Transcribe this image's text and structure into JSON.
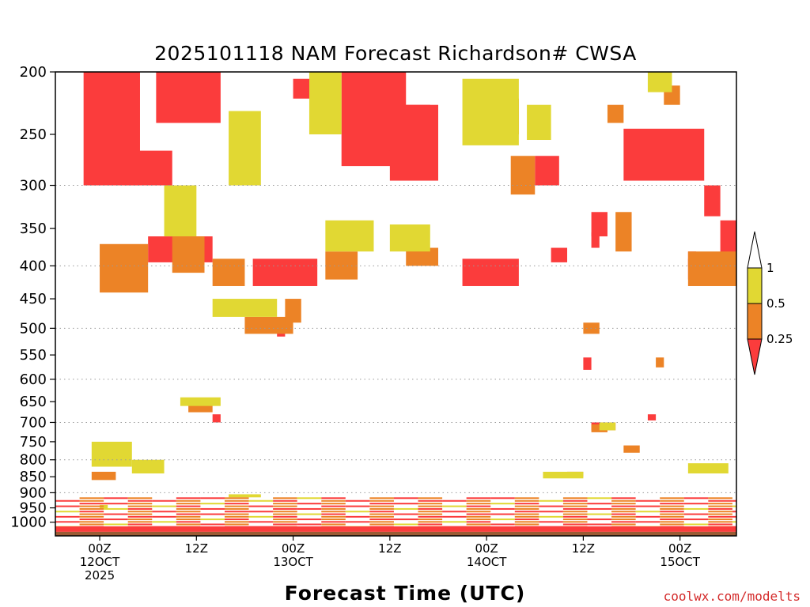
{
  "chart_data": {
    "type": "heatmap",
    "title": "2025101118 NAM Forecast Richardson# CWSA",
    "xlabel": "Forecast Time (UTC)",
    "ylabel": "",
    "y_scale": "log-pressure",
    "ylim": [
      1050,
      200
    ],
    "y_ticks": [
      200,
      250,
      300,
      350,
      400,
      450,
      500,
      550,
      600,
      650,
      700,
      750,
      800,
      850,
      900,
      950,
      1000
    ],
    "y_gridlines": [
      300,
      400,
      500,
      600,
      700,
      800,
      900
    ],
    "x_range_hours": [
      -5.5,
      79
    ],
    "x_ticks": [
      {
        "hour": 0,
        "line1": "00Z",
        "line2": "12OCT",
        "line3": "2025"
      },
      {
        "hour": 12,
        "line1": "12Z",
        "line2": "",
        "line3": ""
      },
      {
        "hour": 24,
        "line1": "00Z",
        "line2": "13OCT",
        "line3": ""
      },
      {
        "hour": 36,
        "line1": "12Z",
        "line2": "",
        "line3": ""
      },
      {
        "hour": 48,
        "line1": "00Z",
        "line2": "14OCT",
        "line3": ""
      },
      {
        "hour": 60,
        "line1": "12Z",
        "line2": "",
        "line3": ""
      },
      {
        "hour": 72,
        "line1": "00Z",
        "line2": "15OCT",
        "line3": ""
      }
    ],
    "legend": {
      "placement": "right",
      "levels": [
        "1",
        "0.5",
        "0.25"
      ],
      "bins": [
        {
          "range": "> 1",
          "color": "#ffffff"
        },
        {
          "range": "0.5 - 1",
          "color": "#e1d833"
        },
        {
          "range": "0.25 - 0.5",
          "color": "#ec8326"
        },
        {
          "range": "< 0.25",
          "color": "#fb3c3c"
        }
      ]
    },
    "colors": {
      "yellow": "#e1d833",
      "orange": "#ec8326",
      "red": "#fb3c3c",
      "ground": "#9a5b34"
    },
    "regions": [
      {
        "c": "red",
        "h": [
          -2,
          5
        ],
        "p": [
          200,
          300
        ]
      },
      {
        "c": "red",
        "h": [
          7,
          15
        ],
        "p": [
          200,
          240
        ]
      },
      {
        "c": "red",
        "h": [
          3,
          9
        ],
        "p": [
          265,
          300
        ]
      },
      {
        "c": "red",
        "h": [
          6,
          14
        ],
        "p": [
          360,
          395
        ]
      },
      {
        "c": "red",
        "h": [
          24,
          27
        ],
        "p": [
          205,
          220
        ]
      },
      {
        "c": "red",
        "h": [
          30,
          38
        ],
        "p": [
          200,
          280
        ]
      },
      {
        "c": "red",
        "h": [
          31,
          41
        ],
        "p": [
          225,
          265
        ]
      },
      {
        "c": "red",
        "h": [
          36,
          42
        ],
        "p": [
          225,
          295
        ]
      },
      {
        "c": "red",
        "h": [
          54,
          57
        ],
        "p": [
          270,
          300
        ]
      },
      {
        "c": "red",
        "h": [
          65,
          75
        ],
        "p": [
          245,
          295
        ]
      },
      {
        "c": "red",
        "h": [
          19,
          27
        ],
        "p": [
          390,
          430
        ]
      },
      {
        "c": "red",
        "h": [
          45,
          52
        ],
        "p": [
          390,
          430
        ]
      },
      {
        "c": "red",
        "h": [
          56,
          58
        ],
        "p": [
          375,
          395
        ]
      },
      {
        "c": "red",
        "h": [
          61,
          62
        ],
        "p": [
          355,
          375
        ]
      },
      {
        "c": "red",
        "h": [
          73,
          78
        ],
        "p": [
          390,
          420
        ]
      },
      {
        "c": "red",
        "h": [
          73,
          74
        ],
        "p": [
          380,
          400
        ]
      },
      {
        "c": "red",
        "h": [
          75,
          77
        ],
        "p": [
          300,
          335
        ]
      },
      {
        "c": "red",
        "h": [
          77,
          79
        ],
        "p": [
          340,
          390
        ]
      },
      {
        "c": "red",
        "h": [
          61,
          63
        ],
        "p": [
          330,
          360
        ]
      },
      {
        "c": "red",
        "h": [
          22,
          23
        ],
        "p": [
          490,
          515
        ]
      },
      {
        "c": "red",
        "h": [
          60,
          61
        ],
        "p": [
          555,
          580
        ]
      },
      {
        "c": "red",
        "h": [
          61,
          64
        ],
        "p": [
          700,
          720
        ]
      },
      {
        "c": "red",
        "h": [
          68,
          69
        ],
        "p": [
          680,
          695
        ]
      },
      {
        "c": "red",
        "h": [
          14,
          15
        ],
        "p": [
          680,
          700
        ]
      },
      {
        "c": "orange",
        "h": [
          0,
          6
        ],
        "p": [
          370,
          440
        ]
      },
      {
        "c": "orange",
        "h": [
          9,
          13
        ],
        "p": [
          360,
          410
        ]
      },
      {
        "c": "orange",
        "h": [
          14,
          18
        ],
        "p": [
          390,
          430
        ]
      },
      {
        "c": "orange",
        "h": [
          18,
          24
        ],
        "p": [
          480,
          510
        ]
      },
      {
        "c": "orange",
        "h": [
          23,
          25
        ],
        "p": [
          450,
          490
        ]
      },
      {
        "c": "orange",
        "h": [
          28,
          32
        ],
        "p": [
          380,
          420
        ]
      },
      {
        "c": "orange",
        "h": [
          38,
          42
        ],
        "p": [
          375,
          400
        ]
      },
      {
        "c": "orange",
        "h": [
          48,
          52
        ],
        "p": [
          220,
          250
        ]
      },
      {
        "c": "orange",
        "h": [
          51,
          54
        ],
        "p": [
          270,
          310
        ]
      },
      {
        "c": "orange",
        "h": [
          63,
          65
        ],
        "p": [
          225,
          240
        ]
      },
      {
        "c": "orange",
        "h": [
          64,
          66
        ],
        "p": [
          330,
          380
        ]
      },
      {
        "c": "orange",
        "h": [
          70,
          72
        ],
        "p": [
          210,
          225
        ]
      },
      {
        "c": "orange",
        "h": [
          73,
          79
        ],
        "p": [
          380,
          430
        ]
      },
      {
        "c": "orange",
        "h": [
          69,
          70
        ],
        "p": [
          555,
          575
        ]
      },
      {
        "c": "orange",
        "h": [
          60,
          62
        ],
        "p": [
          490,
          510
        ]
      },
      {
        "c": "orange",
        "h": [
          11,
          14
        ],
        "p": [
          650,
          675
        ]
      },
      {
        "c": "orange",
        "h": [
          61,
          63
        ],
        "p": [
          705,
          725
        ]
      },
      {
        "c": "orange",
        "h": [
          65,
          67
        ],
        "p": [
          760,
          780
        ]
      },
      {
        "c": "orange",
        "h": [
          -1,
          2
        ],
        "p": [
          835,
          860
        ]
      },
      {
        "c": "orange",
        "h": [
          58,
          60
        ],
        "p": [
          835,
          850
        ]
      },
      {
        "c": "yellow",
        "h": [
          8,
          12
        ],
        "p": [
          300,
          360
        ]
      },
      {
        "c": "yellow",
        "h": [
          16,
          20
        ],
        "p": [
          230,
          300
        ]
      },
      {
        "c": "yellow",
        "h": [
          26,
          30
        ],
        "p": [
          200,
          250
        ]
      },
      {
        "c": "yellow",
        "h": [
          28,
          34
        ],
        "p": [
          340,
          380
        ]
      },
      {
        "c": "yellow",
        "h": [
          36,
          41
        ],
        "p": [
          345,
          380
        ]
      },
      {
        "c": "yellow",
        "h": [
          45,
          52
        ],
        "p": [
          205,
          260
        ]
      },
      {
        "c": "yellow",
        "h": [
          53,
          56
        ],
        "p": [
          225,
          255
        ]
      },
      {
        "c": "yellow",
        "h": [
          68,
          71
        ],
        "p": [
          200,
          215
        ]
      },
      {
        "c": "yellow",
        "h": [
          14,
          22
        ],
        "p": [
          450,
          480
        ]
      },
      {
        "c": "yellow",
        "h": [
          -1,
          4
        ],
        "p": [
          750,
          820
        ]
      },
      {
        "c": "yellow",
        "h": [
          4,
          8
        ],
        "p": [
          800,
          840
        ]
      },
      {
        "c": "yellow",
        "h": [
          10,
          15
        ],
        "p": [
          640,
          660
        ]
      },
      {
        "c": "yellow",
        "h": [
          62,
          64
        ],
        "p": [
          700,
          720
        ]
      },
      {
        "c": "yellow",
        "h": [
          55,
          60
        ],
        "p": [
          835,
          855
        ]
      },
      {
        "c": "yellow",
        "h": [
          73,
          78
        ],
        "p": [
          810,
          840
        ]
      },
      {
        "c": "yellow",
        "h": [
          0,
          1
        ],
        "p": [
          940,
          955
        ]
      },
      {
        "c": "yellow",
        "h": [
          16,
          20
        ],
        "p": [
          905,
          915
        ]
      }
    ],
    "boundary_layer": {
      "top_hpa": 950,
      "base_hpa": 1050,
      "ground_top_hpa": 1035
    }
  }
}
